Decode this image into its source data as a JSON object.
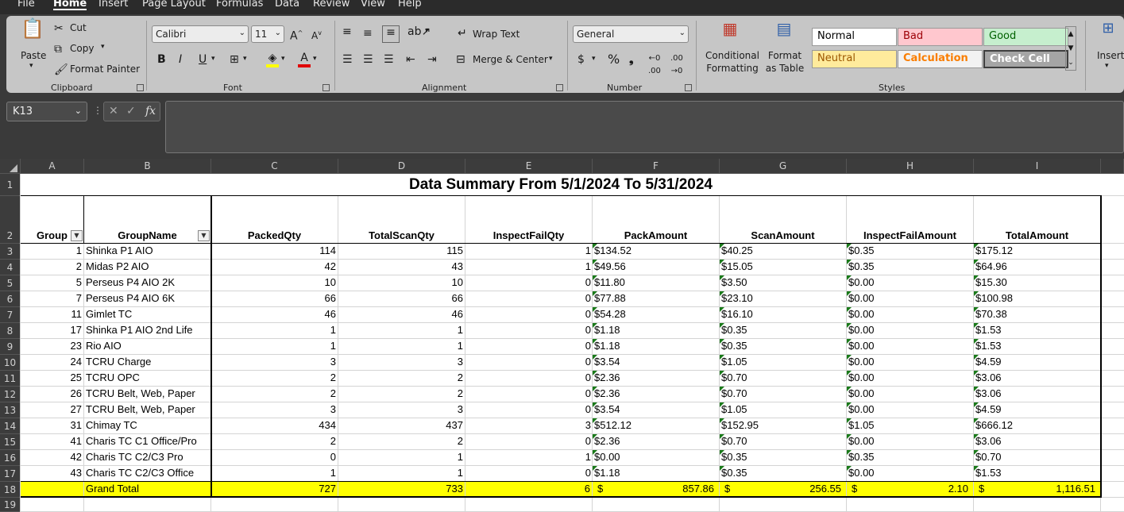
{
  "menu": {
    "items": [
      "File",
      "Home",
      "Insert",
      "Page Layout",
      "Formulas",
      "Data",
      "Review",
      "View",
      "Help"
    ]
  },
  "ribbon": {
    "clipboard": {
      "paste": "Paste",
      "cut": "Cut",
      "copy": "Copy",
      "format_painter": "Format Painter",
      "label": "Clipboard"
    },
    "font": {
      "name": "Calibri",
      "size": "11",
      "label": "Font",
      "bold": "B",
      "italic": "I",
      "underline": "U"
    },
    "alignment": {
      "wrap_text": "Wrap Text",
      "merge_center": "Merge & Center",
      "label": "Alignment"
    },
    "number": {
      "format": "General",
      "currency": "$",
      "percent": "%",
      "comma": "❟",
      "label": "Number"
    },
    "styles": {
      "conditional": "Conditional Formatting",
      "format_table": "Format as Table",
      "normal": "Normal",
      "bad": "Bad",
      "good": "Good",
      "neutral": "Neutral",
      "calculation": "Calculation",
      "check_cell": "Check Cell",
      "label": "Styles"
    },
    "cells": {
      "insert": "Insert"
    }
  },
  "formula_bar": {
    "name_box": "K13",
    "fx": "fx",
    "content": ""
  },
  "sheet": {
    "columns": [
      "A",
      "B",
      "C",
      "D",
      "E",
      "F",
      "G",
      "H",
      "I"
    ],
    "row_numbers": [
      "1",
      "2",
      "3",
      "4",
      "5",
      "6",
      "7",
      "8",
      "9",
      "10",
      "11",
      "12",
      "13",
      "14",
      "15",
      "16",
      "17",
      "18",
      "19"
    ],
    "title": "Data Summary From 5/1/2024 To 5/31/2024",
    "headers": [
      "Group",
      "GroupName",
      "PackedQty",
      "TotalScanQty",
      "InspectFailQty",
      "PackAmount",
      "ScanAmount",
      "InspectFailAmount",
      "TotalAmount"
    ],
    "rows": [
      [
        "1",
        "Shinka P1 AIO",
        "114",
        "115",
        "1",
        "$134.52",
        "$40.25",
        "$0.35",
        "$175.12"
      ],
      [
        "2",
        "Midas P2 AIO",
        "42",
        "43",
        "1",
        "$49.56",
        "$15.05",
        "$0.35",
        "$64.96"
      ],
      [
        "5",
        "Perseus P4 AIO 2K",
        "10",
        "10",
        "0",
        "$11.80",
        "$3.50",
        "$0.00",
        "$15.30"
      ],
      [
        "7",
        "Perseus P4 AIO 6K",
        "66",
        "66",
        "0",
        "$77.88",
        "$23.10",
        "$0.00",
        "$100.98"
      ],
      [
        "11",
        "Gimlet TC",
        "46",
        "46",
        "0",
        "$54.28",
        "$16.10",
        "$0.00",
        "$70.38"
      ],
      [
        "17",
        "Shinka P1 AIO 2nd Life",
        "1",
        "1",
        "0",
        "$1.18",
        "$0.35",
        "$0.00",
        "$1.53"
      ],
      [
        "23",
        "Rio AIO",
        "1",
        "1",
        "0",
        "$1.18",
        "$0.35",
        "$0.00",
        "$1.53"
      ],
      [
        "24",
        "TCRU Charge",
        "3",
        "3",
        "0",
        "$3.54",
        "$1.05",
        "$0.00",
        "$4.59"
      ],
      [
        "25",
        "TCRU OPC",
        "2",
        "2",
        "0",
        "$2.36",
        "$0.70",
        "$0.00",
        "$3.06"
      ],
      [
        "26",
        "TCRU Belt, Web, Paper",
        "2",
        "2",
        "0",
        "$2.36",
        "$0.70",
        "$0.00",
        "$3.06"
      ],
      [
        "27",
        "TCRU Belt, Web, Paper",
        "3",
        "3",
        "0",
        "$3.54",
        "$1.05",
        "$0.00",
        "$4.59"
      ],
      [
        "31",
        "Chimay TC",
        "434",
        "437",
        "3",
        "$512.12",
        "$152.95",
        "$1.05",
        "$666.12"
      ],
      [
        "41",
        "Charis TC C1 Office/Pro",
        "2",
        "2",
        "0",
        "$2.36",
        "$0.70",
        "$0.00",
        "$3.06"
      ],
      [
        "42",
        "Charis TC C2/C3 Pro",
        "0",
        "1",
        "1",
        "$0.00",
        "$0.35",
        "$0.35",
        "$0.70"
      ],
      [
        "43",
        "Charis TC C2/C3 Office",
        "1",
        "1",
        "0",
        "$1.18",
        "$0.35",
        "$0.00",
        "$1.53"
      ]
    ],
    "total": {
      "label": "Grand Total",
      "packed": "727",
      "scan": "733",
      "fail": "6",
      "pack_amt": "857.86",
      "scan_amt": "256.55",
      "fail_amt": "2.10",
      "total_amt": "1,116.51",
      "currency": "$"
    },
    "total_fill": "#ffff00"
  }
}
